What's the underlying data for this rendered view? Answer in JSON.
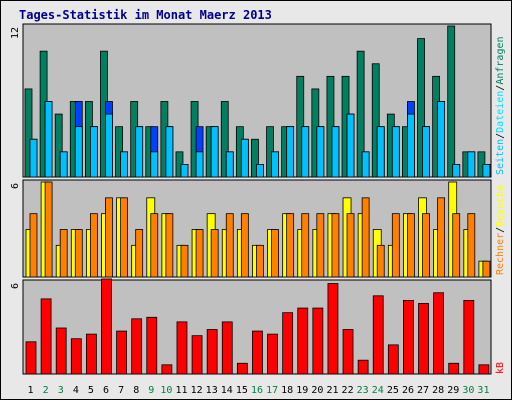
{
  "page": {
    "background": "#e8e8e8"
  },
  "title": "Tages-Statistik im Monat Maerz 2013",
  "colors": {
    "panel_bg": "#c0c0c0",
    "panel_border": "#000000",
    "title_color": "#000090",
    "anfragen": "#008060",
    "dateien": "#00e0ff",
    "dateien_highlight": "#0040ff",
    "seiten": "#00c0ff",
    "besuche": "#ffff00",
    "rechner": "#ff8000",
    "kb": "#ff0000",
    "weekend_label": "#008040",
    "weekday_label": "#000000"
  },
  "right_labels": {
    "top": [
      "Anfragen",
      "Dateien",
      "Seiten"
    ],
    "mid": [
      "Besuche",
      "Rechner"
    ],
    "bottom": [
      "kB"
    ]
  },
  "chart_data": {
    "type": "bar",
    "title": "Tages-Statistik im Monat Maerz 2013",
    "x": [
      "1",
      "2",
      "3",
      "4",
      "5",
      "6",
      "7",
      "8",
      "9",
      "10",
      "11",
      "12",
      "13",
      "14",
      "15",
      "16",
      "17",
      "18",
      "19",
      "20",
      "21",
      "22",
      "23",
      "24",
      "25",
      "26",
      "27",
      "28",
      "29",
      "30",
      "31"
    ],
    "weekend": [
      false,
      true,
      true,
      false,
      false,
      false,
      false,
      false,
      true,
      true,
      false,
      false,
      false,
      false,
      false,
      true,
      true,
      false,
      false,
      false,
      false,
      false,
      true,
      true,
      false,
      false,
      false,
      false,
      false,
      true,
      true
    ],
    "panels": [
      {
        "id": "requests",
        "ymax_label": "12",
        "ylim": [
          0,
          12
        ],
        "series": [
          {
            "name": "Anfragen",
            "values": [
              7,
              10,
              5,
              6,
              6,
              10,
              4,
              6,
              4,
              6,
              2,
              6,
              4,
              6,
              4,
              3,
              4,
              4,
              8,
              7,
              8,
              8,
              10,
              9,
              5,
              4,
              11,
              8,
              12,
              2,
              2
            ]
          },
          {
            "name": "Dateien",
            "values": [
              3,
              6,
              2,
              6,
              4,
              6,
              2,
              4,
              4,
              4,
              1,
              4,
              4,
              2,
              3,
              1,
              2,
              4,
              4,
              4,
              4,
              5,
              2,
              4,
              4,
              6,
              4,
              6,
              1,
              2,
              1
            ]
          },
          {
            "name": "Seiten",
            "values": [
              3,
              6,
              2,
              4,
              4,
              5,
              2,
              4,
              2,
              4,
              1,
              2,
              4,
              2,
              3,
              1,
              2,
              4,
              4,
              4,
              4,
              5,
              2,
              4,
              4,
              5,
              4,
              6,
              1,
              2,
              1
            ]
          }
        ]
      },
      {
        "id": "visits",
        "ymax_label": "6",
        "ylim": [
          0,
          6
        ],
        "series": [
          {
            "name": "Besuche",
            "values": [
              3,
              6,
              2,
              3,
              3,
              4,
              5,
              2,
              5,
              4,
              2,
              3,
              4,
              3,
              3,
              2,
              3,
              4,
              3,
              3,
              4,
              5,
              4,
              3,
              2,
              4,
              5,
              3,
              6,
              3,
              1
            ]
          },
          {
            "name": "Rechner",
            "values": [
              4,
              6,
              3,
              3,
              4,
              5,
              5,
              3,
              4,
              4,
              2,
              3,
              3,
              4,
              4,
              2,
              3,
              4,
              4,
              4,
              4,
              4,
              5,
              2,
              4,
              4,
              4,
              5,
              4,
              4,
              1
            ]
          }
        ]
      },
      {
        "id": "traffic",
        "ymax_label": "6",
        "ylim": [
          0,
          6
        ],
        "series": [
          {
            "name": "kB",
            "values": [
              2.1,
              4.9,
              3.0,
              2.3,
              2.6,
              6.2,
              2.8,
              3.6,
              3.7,
              0.6,
              3.4,
              2.5,
              2.9,
              3.4,
              0.7,
              2.8,
              2.6,
              4.0,
              4.3,
              4.3,
              5.9,
              2.9,
              0.9,
              5.1,
              1.9,
              4.8,
              4.6,
              5.3,
              0.7,
              4.8,
              0.6
            ]
          }
        ]
      }
    ]
  }
}
